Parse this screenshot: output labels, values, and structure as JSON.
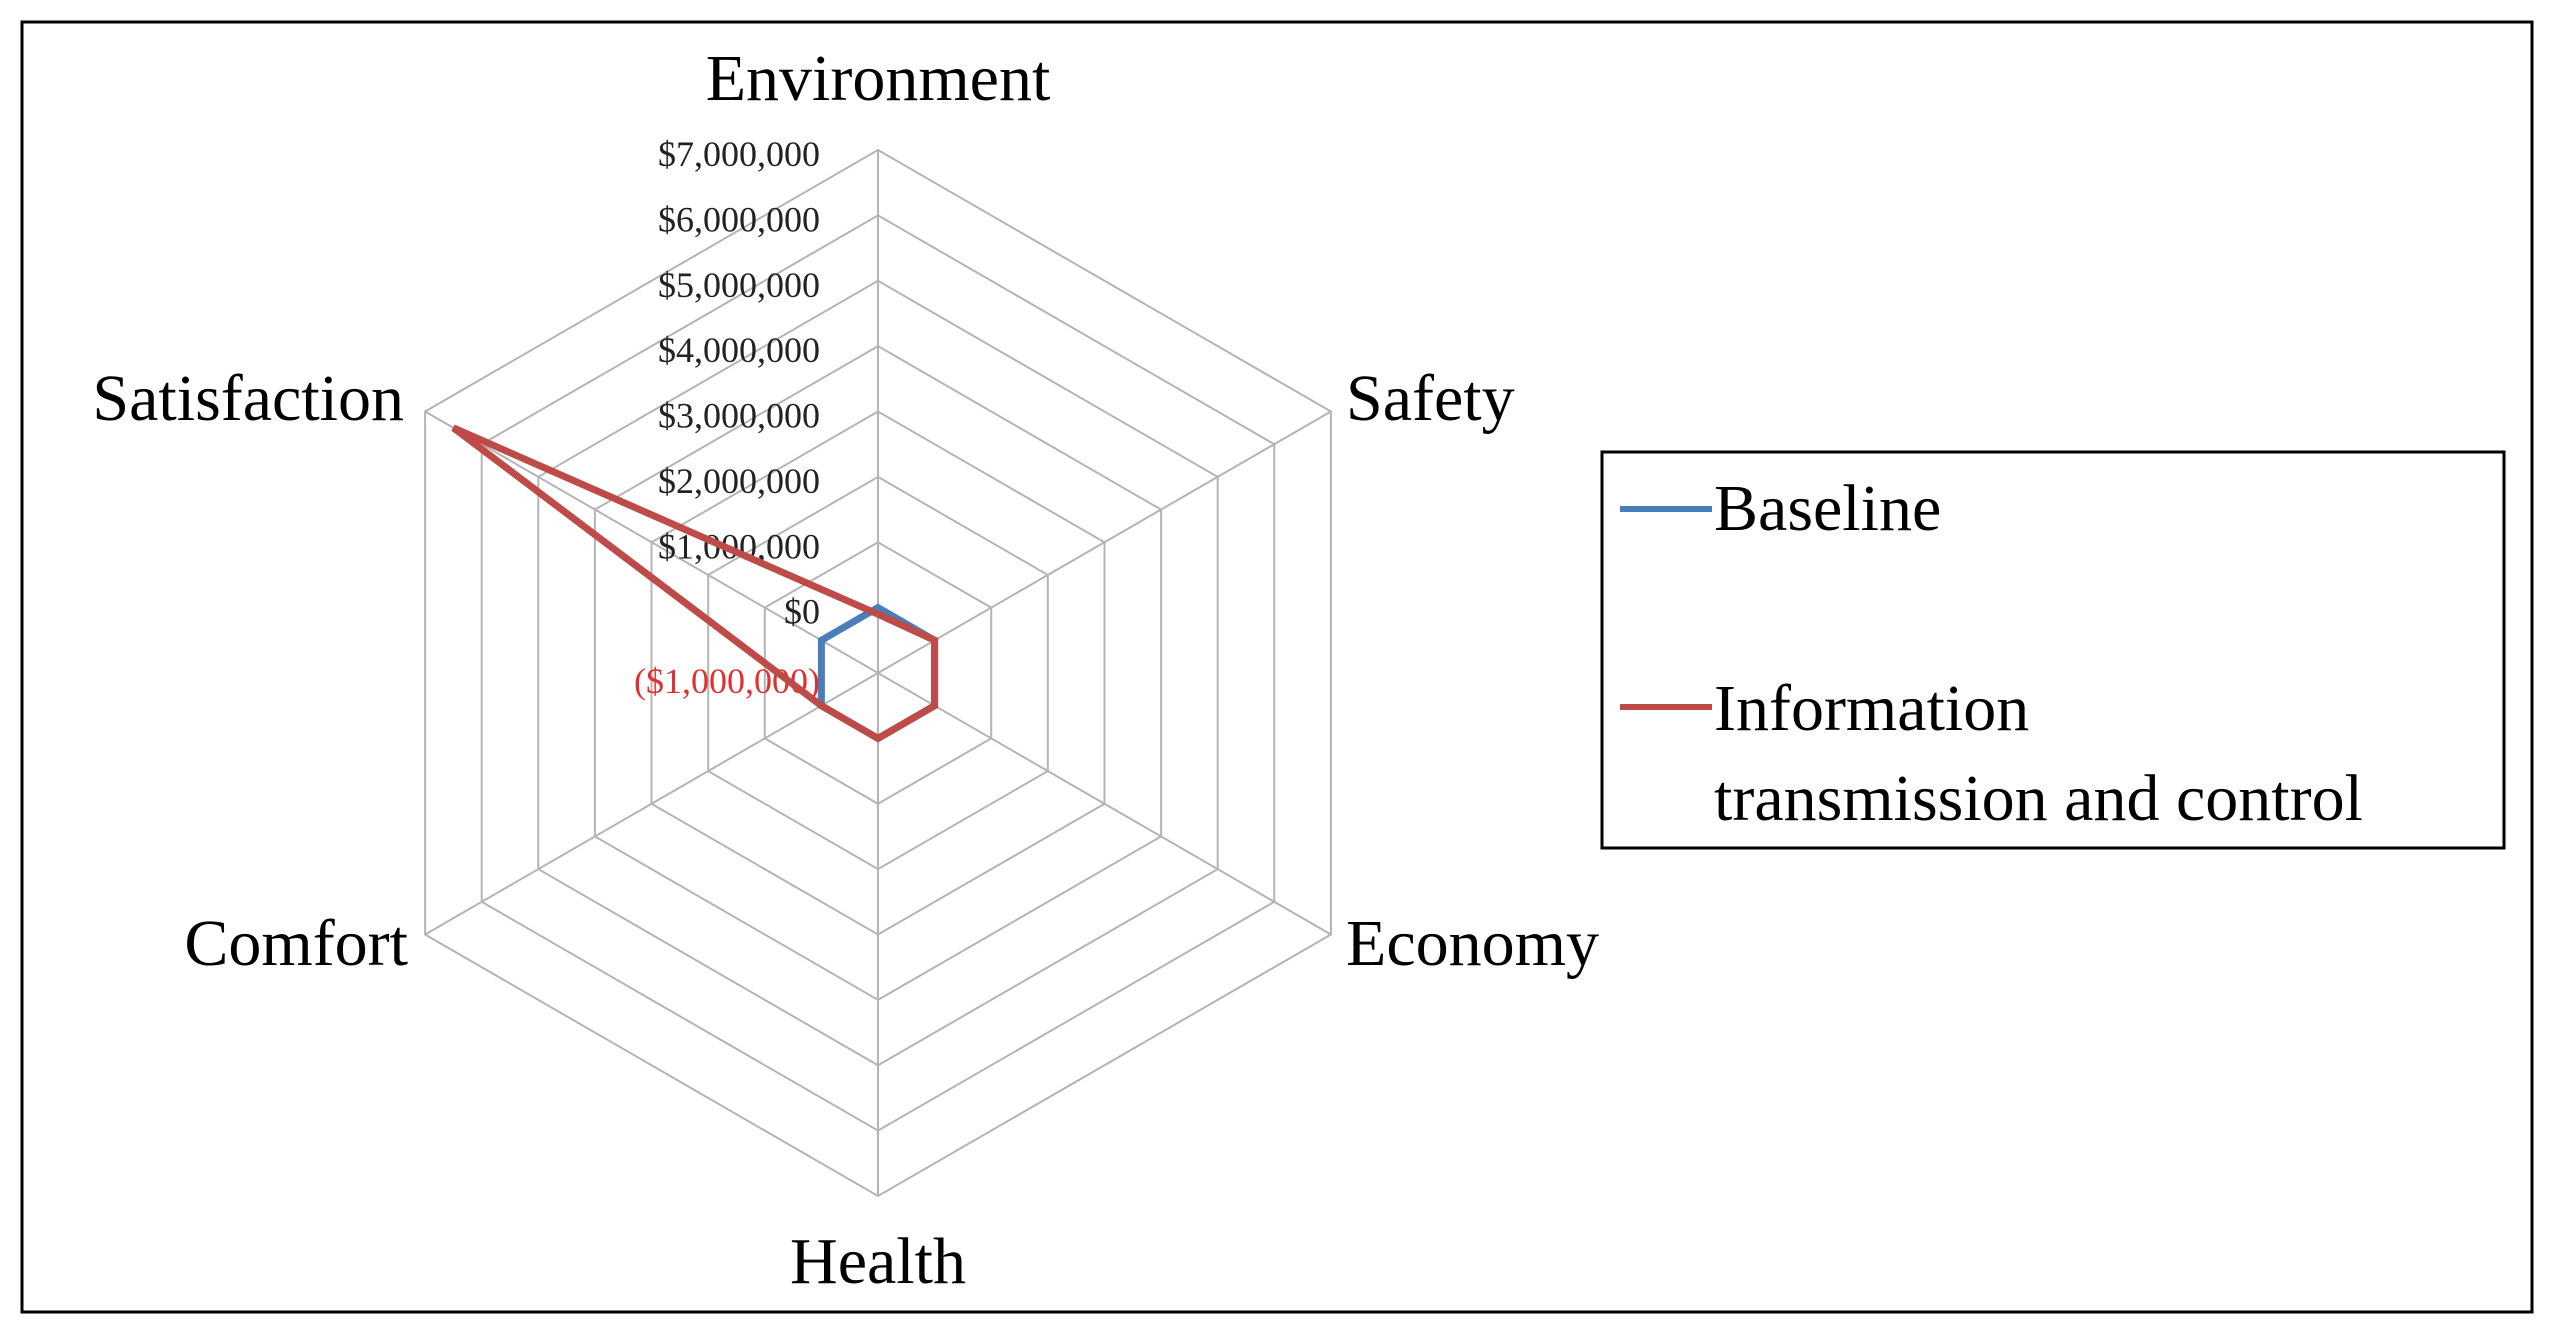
{
  "chart_data": {
    "type": "radar",
    "axes": [
      "Environment",
      "Safety",
      "Economy",
      "Health",
      "Comfort",
      "Satisfaction"
    ],
    "radial_ticks": [
      "($1,000,000)",
      "$0",
      "$1,000,000",
      "$2,000,000",
      "$3,000,000",
      "$4,000,000",
      "$5,000,000",
      "$6,000,000",
      "$7,000,000"
    ],
    "radial_range": [
      -1000000,
      7000000
    ],
    "radial_tick_step": 1000000,
    "grid": true,
    "legend_position": "right",
    "series": [
      {
        "name": "Baseline",
        "color": "#4a7ebb",
        "values": [
          0,
          0,
          0,
          0,
          0,
          0
        ]
      },
      {
        "name": "Information transmission and control",
        "color": "#be4b48",
        "values": [
          -100000,
          0,
          0,
          0,
          0,
          6500000
        ]
      }
    ],
    "legend": {
      "entries": [
        "Baseline",
        "Information transmission and control"
      ]
    },
    "colors": {
      "grid": "#b4b4b4",
      "negative_tick": "#e03030",
      "tick": "#222222",
      "frame": "#000000"
    }
  }
}
